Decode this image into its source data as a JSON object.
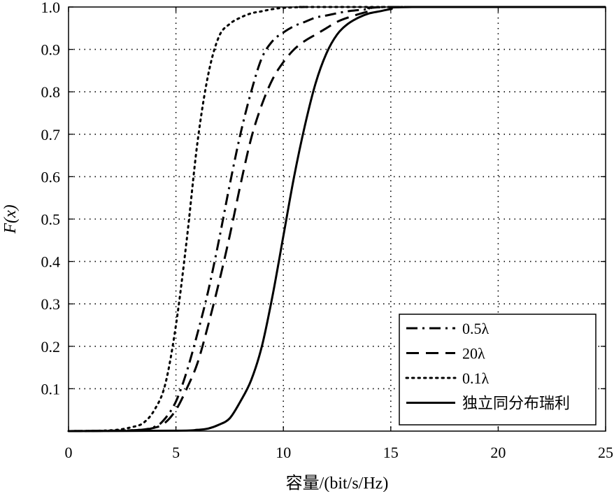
{
  "chart_data": {
    "type": "line",
    "title": "",
    "xlabel": "容量/(bit/s/Hz)",
    "ylabel": "F(x)",
    "xlim": [
      0,
      25
    ],
    "ylim": [
      0,
      1
    ],
    "xticks": [
      0,
      5,
      10,
      15,
      20,
      25
    ],
    "xtick_labels": [
      "0",
      "5",
      "10",
      "15",
      "20",
      "25"
    ],
    "yticks": [
      0.1,
      0.2,
      0.3,
      0.4,
      0.5,
      0.6,
      0.7,
      0.8,
      0.9,
      1.0
    ],
    "ytick_labels": [
      "0.1",
      "0.2",
      "0.3",
      "0.4",
      "0.5",
      "0.6",
      "0.7",
      "0.8",
      "0.9",
      "1.0"
    ],
    "grid": true,
    "legend_position": "bottom-right",
    "series": [
      {
        "name": "0.5λ",
        "style": "dashdot",
        "x": [
          0,
          3,
          4,
          4.5,
          5,
          5.5,
          6,
          6.5,
          7,
          7.5,
          8,
          8.5,
          9,
          9.5,
          10,
          10.5,
          11,
          11.5,
          12,
          13,
          14,
          15,
          25
        ],
        "y": [
          0,
          0.002,
          0.01,
          0.03,
          0.07,
          0.14,
          0.23,
          0.33,
          0.45,
          0.58,
          0.7,
          0.8,
          0.88,
          0.92,
          0.94,
          0.955,
          0.965,
          0.975,
          0.98,
          0.99,
          0.995,
          1.0,
          1.0
        ]
      },
      {
        "name": "20λ",
        "style": "dashed",
        "x": [
          0,
          3,
          4,
          4.5,
          5,
          5.5,
          6,
          6.5,
          7,
          7.5,
          8,
          8.5,
          9,
          9.5,
          10,
          10.5,
          11,
          11.5,
          12,
          12.5,
          13,
          14,
          15,
          25
        ],
        "y": [
          0,
          0.002,
          0.008,
          0.02,
          0.05,
          0.1,
          0.16,
          0.25,
          0.35,
          0.46,
          0.58,
          0.69,
          0.77,
          0.83,
          0.87,
          0.9,
          0.92,
          0.935,
          0.95,
          0.965,
          0.975,
          0.99,
          1.0,
          1.0
        ]
      },
      {
        "name": "0.1λ",
        "style": "dotted",
        "x": [
          0,
          2,
          3,
          3.5,
          4,
          4.5,
          5,
          5.5,
          6,
          6.5,
          7,
          7.5,
          8,
          8.5,
          9,
          9.5,
          10,
          11,
          12,
          25
        ],
        "y": [
          0,
          0.002,
          0.01,
          0.02,
          0.05,
          0.11,
          0.25,
          0.45,
          0.68,
          0.84,
          0.93,
          0.96,
          0.975,
          0.985,
          0.99,
          0.995,
          0.998,
          1.0,
          1.0,
          1.0
        ]
      },
      {
        "name": "独立同分布瑞利",
        "style": "solid",
        "x": [
          0,
          5,
          6,
          6.5,
          7,
          7.5,
          8,
          8.5,
          9,
          9.5,
          10,
          10.5,
          11,
          11.5,
          12,
          12.5,
          13,
          13.5,
          14,
          14.5,
          15,
          16,
          25
        ],
        "y": [
          0,
          0.001,
          0.003,
          0.006,
          0.015,
          0.03,
          0.07,
          0.12,
          0.2,
          0.32,
          0.46,
          0.6,
          0.72,
          0.82,
          0.89,
          0.935,
          0.96,
          0.975,
          0.985,
          0.99,
          0.995,
          1.0,
          1.0
        ]
      }
    ]
  }
}
